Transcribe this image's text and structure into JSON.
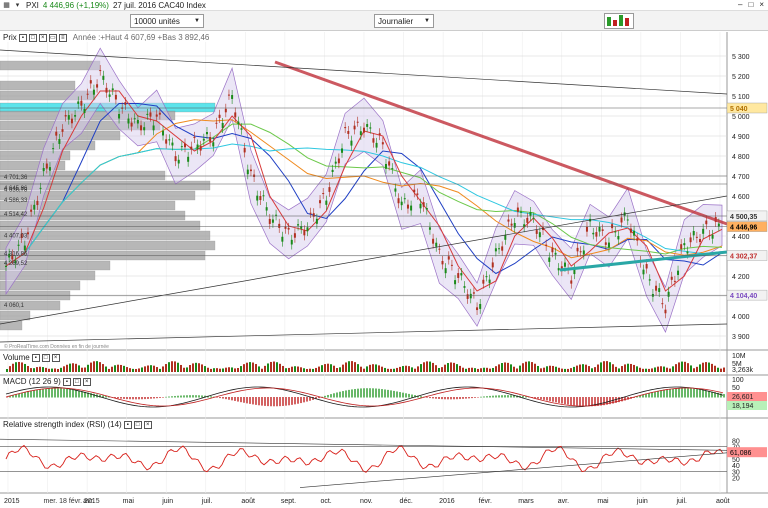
{
  "window": {
    "icon": "chart-app-icon",
    "symbol": "PXI",
    "change": "4 446,96 (+1,19%)",
    "title": "27 juil. 2016 CAC40 Index",
    "controls": [
      "–",
      "□",
      "×"
    ]
  },
  "toolbar": {
    "volume_select": "10000 unités",
    "period_select": "Journalier",
    "indicator_icon": "indicators-icon"
  },
  "panels": {
    "price": {
      "label": "Prix",
      "legend": "Année :+Haut 4 607,69 +Bas 3 892,46",
      "watermark": "© ProRealTime.com  Données en fin de journée"
    },
    "volume": {
      "label": "Volume"
    },
    "macd": {
      "label": "MACD (12 26 9)"
    },
    "rsi": {
      "label": "Relative strength index (RSI) (14)"
    }
  },
  "colors": {
    "price_bg_band": "#e8e8f5",
    "bollinger": "#9b72c7",
    "bollinger_fill": "#d8cdee",
    "ma_blue": "#1f3fc4",
    "ma_orange": "#f08a1e",
    "ma_green": "#6cc84a",
    "ma_cyan": "#2ec7e0",
    "ma_red": "#d83a3a",
    "trend_red": "#c0303a",
    "trend_teal": "#2aa7a6",
    "candle_up": "#1a8a1a",
    "candle_down": "#b03020",
    "vol_profile": "#a0a0a0",
    "vol_profile_hl": "#40e0e8",
    "rsi_line": "#d8201a",
    "macd_hist_up": "#2a9a2a",
    "macd_hist_down": "#c02020"
  },
  "chart_data": [
    {
      "type": "line",
      "panel": "price",
      "title": "27 juil. 2016 CAC40 Index",
      "ylim": [
        3850,
        5400
      ],
      "yticks": [
        3900,
        4000,
        4100,
        4200,
        4300,
        4400,
        4500,
        4600,
        4700,
        4800,
        4900,
        5000,
        5100,
        5200,
        5300
      ],
      "xlabels": [
        "2015",
        "mer. 18 févr. 2015",
        "avr.",
        "mai",
        "juin",
        "juil.",
        "août",
        "sept.",
        "oct.",
        "nov.",
        "déc.",
        "2016",
        "févr.",
        "mars",
        "avr.",
        "mai",
        "juin",
        "juil.",
        "août"
      ],
      "x": [
        0,
        10,
        20,
        30,
        40,
        50,
        60,
        70,
        80,
        90,
        100,
        110,
        120,
        130,
        140,
        150,
        160,
        170,
        180,
        190,
        200,
        210,
        220,
        230,
        240,
        250,
        260,
        270,
        280,
        290,
        300,
        310,
        320,
        330,
        340,
        350,
        360,
        370,
        380
      ],
      "series": [
        {
          "values": [
            4250,
            4380,
            4700,
            4950,
            5050,
            5200,
            5050,
            4950,
            5000,
            4800,
            4850,
            4900,
            5100,
            4700,
            4500,
            4400,
            4450,
            4600,
            4900,
            4950,
            4850,
            4550,
            4600,
            4300,
            4200,
            4050,
            4300,
            4500,
            4480,
            4300,
            4200,
            4450,
            4380,
            4500,
            4200,
            4050,
            4350,
            4420,
            4447
          ]
        }
      ],
      "price_labels": [
        "5 040",
        "4 500,35",
        "4 446,96",
        "4 302,37",
        "4 104,40"
      ],
      "left_labels": [
        "4 701,36",
        "4 645,86",
        "4 636,78",
        "4 586,33",
        "4 514,42",
        "4 407,03",
        "4 316,86",
        "4 269,52",
        "4 060,1"
      ]
    },
    {
      "type": "bar",
      "panel": "volume",
      "yticks_labels": [
        "10M",
        "5M",
        "3,263k"
      ]
    },
    {
      "type": "line",
      "panel": "macd",
      "yticks_labels": [
        "100",
        "50",
        "26,601",
        "18,194"
      ]
    },
    {
      "type": "line",
      "panel": "rsi",
      "ylim": [
        0,
        100
      ],
      "yticks": [
        20,
        30,
        40,
        50,
        60,
        70,
        80
      ],
      "last_value": "61,086"
    }
  ]
}
